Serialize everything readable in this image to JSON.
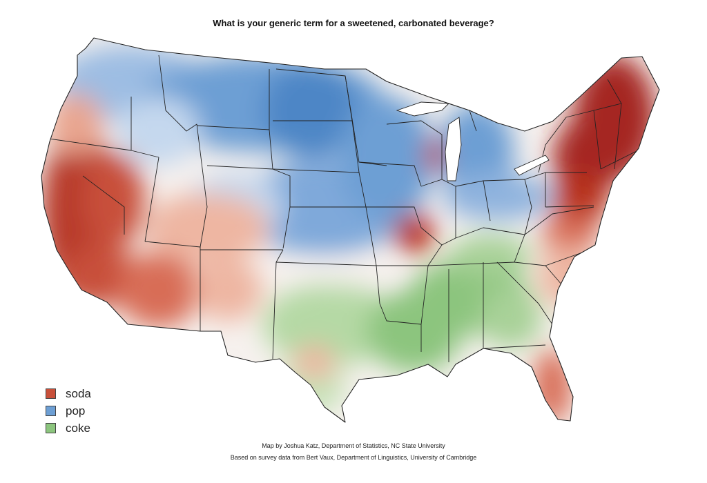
{
  "title": "What is your generic term for a sweetened, carbonated beverage?",
  "legend": [
    {
      "label": "soda",
      "color": "#c8503a"
    },
    {
      "label": "pop",
      "color": "#6d9fd4"
    },
    {
      "label": "coke",
      "color": "#8cc57e"
    }
  ],
  "credits": {
    "line1": "Map by Joshua Katz, Department of Statistics, NC State University",
    "line2": "Based on survey data from Bert Vaux, Department of Linguistics, University of Cambridge"
  },
  "colors": {
    "soda_dark": "#a52820",
    "soda": "#c8503a",
    "soda_light": "#e9a58f",
    "pop_dark": "#4a82c4",
    "pop": "#7fa9da",
    "pop_light": "#c5d8ee",
    "coke": "#8cc57e",
    "coke_light": "#c6e2b8",
    "neutral": "#f6f1ee"
  }
}
